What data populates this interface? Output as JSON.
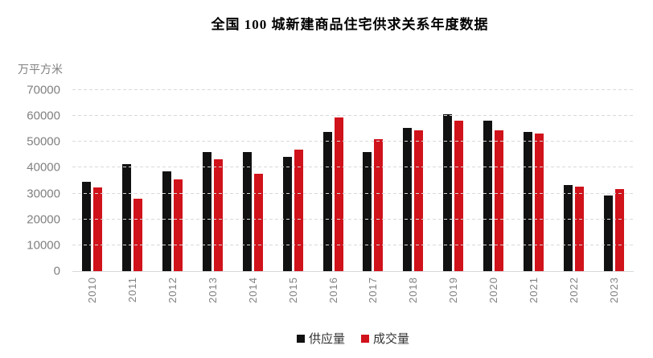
{
  "chart_data": {
    "type": "bar",
    "title": "全国 100 城新建商品住宅供求关系年度数据",
    "unit_label": "万平方米",
    "xlabel": "",
    "ylabel": "万平方米",
    "ylim": [
      0,
      70000
    ],
    "ytick_step": 10000,
    "yticks": [
      0,
      10000,
      20000,
      30000,
      40000,
      50000,
      60000,
      70000
    ],
    "grid": "horizontal-dashed",
    "legend_position": "bottom",
    "categories": [
      "2010",
      "2011",
      "2012",
      "2013",
      "2014",
      "2015",
      "2016",
      "2017",
      "2018",
      "2019",
      "2020",
      "2021",
      "2022",
      "2023"
    ],
    "series": [
      {
        "name": "供应量",
        "color": "#111111",
        "values": [
          34400,
          41400,
          38700,
          46200,
          46100,
          44200,
          53800,
          45900,
          55300,
          60600,
          58200,
          53900,
          33300,
          29200
        ]
      },
      {
        "name": "成交量",
        "color": "#d0121b",
        "values": [
          32300,
          28100,
          35600,
          43100,
          37500,
          46900,
          59400,
          51100,
          54300,
          58300,
          54600,
          53300,
          32600,
          31600
        ]
      }
    ],
    "colors": {
      "grid": "#d9d9d9",
      "axis_line": "#d9d9d9",
      "tick_text": "#808080",
      "legend_text": "#333333",
      "title_text": "#000000"
    }
  }
}
